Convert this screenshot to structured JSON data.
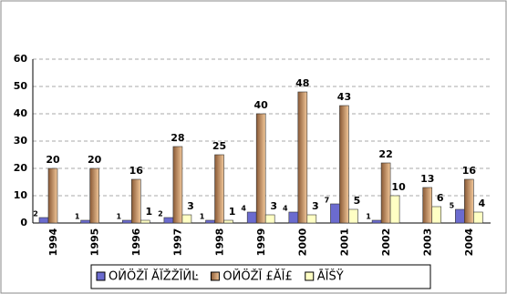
{
  "chart_data": {
    "type": "bar",
    "categories": [
      "1994",
      "1995",
      "1996",
      "1997",
      "1998",
      "1999",
      "2000",
      "2001",
      "2002",
      "2003",
      "2004"
    ],
    "series": [
      {
        "name": "ОЙÖŽĬ ĂĬŽŽĪЙĿ",
        "color": "#6b6bcf",
        "values": [
          2,
          1,
          1,
          2,
          1,
          4,
          4,
          7,
          1,
          null,
          5
        ]
      },
      {
        "name": "ОЙÖŽĬ £ĂĬ£",
        "color": "#c89a6e",
        "values": [
          20,
          20,
          16,
          28,
          25,
          40,
          48,
          43,
          22,
          13,
          16
        ]
      },
      {
        "name": "ĀĬŠŸ",
        "color": "#ffffc4",
        "values": [
          null,
          null,
          1,
          3,
          1,
          3,
          3,
          5,
          10,
          6,
          4
        ]
      }
    ],
    "ylim": [
      0,
      60
    ],
    "yticks": [
      0,
      10,
      20,
      30,
      40,
      50,
      60
    ],
    "grid": true
  }
}
